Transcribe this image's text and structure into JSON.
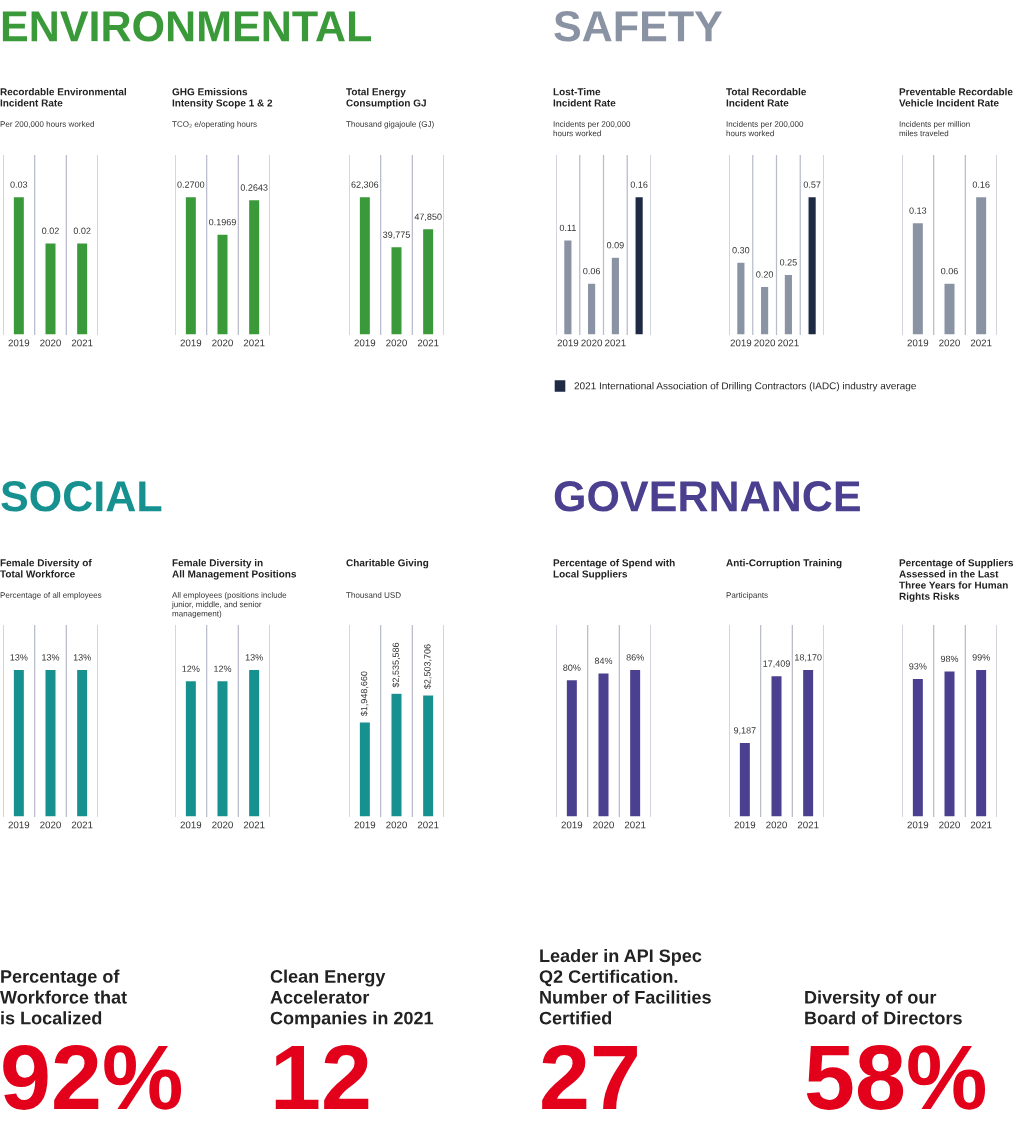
{
  "chart_data": [
    {
      "type": "other",
      "title": "ENVIRONMENTAL",
      "color": "#3a9a3a"
    },
    {
      "type": "bar",
      "title": "Recordable Environmental\nIncident Rate",
      "subtitle": "Per 200,000 hours worked",
      "categories": [
        "2019",
        "2020",
        "2021"
      ],
      "grid": "x",
      "series": [
        {
          "color": "#3a9a3a",
          "values": [
            0.03,
            0.02,
            0.02
          ],
          "value_labels": [
            "0.03",
            "0.02",
            "0.02"
          ]
        }
      ]
    },
    {
      "type": "bar",
      "title": "GHG Emissions\nIntensity Scope 1 & 2",
      "subtitle": "TCO₂ e/operating hours",
      "categories": [
        "2019",
        "2020",
        "2021"
      ],
      "grid": "x",
      "series": [
        {
          "color": "#3a9a3a",
          "values": [
            0.27,
            0.1969,
            0.2643
          ],
          "value_labels": [
            "0.2700",
            "0.1969",
            "0.2643"
          ]
        }
      ]
    },
    {
      "type": "bar",
      "title": "Total Energy\nConsumption GJ",
      "subtitle": "Thousand gigajoule (GJ)",
      "categories": [
        "2019",
        "2020",
        "2021"
      ],
      "grid": "x",
      "series": [
        {
          "color": "#3a9a3a",
          "values": [
            62306,
            39775,
            47850
          ],
          "value_labels": [
            "62,306",
            "39,775",
            "47,850"
          ]
        }
      ]
    },
    {
      "type": "other",
      "title": "SAFETY",
      "color": "#8a93a3"
    },
    {
      "type": "bar",
      "title": "Lost-Time\nIncident Rate",
      "subtitle": "Incidents per 200,000\nhours worked",
      "categories": [
        "2019",
        "2020",
        "2021",
        null
      ],
      "grid": "x",
      "legend": "bottom",
      "series": [
        {
          "color": "#8a93a3",
          "values": [
            0.11,
            0.06,
            0.09,
            null
          ],
          "value_labels": [
            "0.11",
            "0.06",
            "0.09",
            null
          ]
        },
        {
          "name": "2021 International Association of Drilling Contractors (IADC) industry average",
          "color": "#1e2a44",
          "values": [
            null,
            null,
            null,
            0.16
          ],
          "value_labels": [
            null,
            null,
            null,
            "0.16"
          ]
        }
      ]
    },
    {
      "type": "bar",
      "title": "Total Recordable\nIncident Rate",
      "subtitle": "Incidents per 200,000\nhours worked",
      "categories": [
        "2019",
        "2020",
        "2021",
        null
      ],
      "grid": "x",
      "series": [
        {
          "color": "#8a93a3",
          "values": [
            0.3,
            0.2,
            0.25,
            null
          ],
          "value_labels": [
            "0.30",
            "0.20",
            "0.25",
            null
          ]
        },
        {
          "color": "#1e2a44",
          "values": [
            null,
            null,
            null,
            0.57
          ],
          "value_labels": [
            null,
            null,
            null,
            "0.57"
          ]
        }
      ]
    },
    {
      "type": "bar",
      "title": "Preventable Recordable\nVehicle Incident Rate",
      "subtitle": "Incidents per million\nmiles traveled",
      "categories": [
        "2019",
        "2020",
        "2021"
      ],
      "grid": "x",
      "series": [
        {
          "color": "#8a93a3",
          "values": [
            0.13,
            0.06,
            0.16
          ],
          "value_labels": [
            "0.13",
            "0.06",
            "0.16"
          ]
        }
      ]
    },
    {
      "type": "other",
      "title": "SOCIAL",
      "color": "#17918f"
    },
    {
      "type": "bar",
      "title": "Female Diversity of\nTotal Workforce",
      "subtitle": "Percentage of all employees",
      "categories": [
        "2019",
        "2020",
        "2021"
      ],
      "grid": "x",
      "series": [
        {
          "color": "#17918f",
          "values": [
            13,
            13,
            13
          ],
          "value_labels": [
            "13%",
            "13%",
            "13%"
          ]
        }
      ]
    },
    {
      "type": "bar",
      "title": "Female Diversity in\nAll Management Positions",
      "subtitle": "All employees (positions include\njunior, middle, and senior\nmanagement)",
      "categories": [
        "2019",
        "2020",
        "2021"
      ],
      "grid": "x",
      "series": [
        {
          "color": "#17918f",
          "values": [
            12,
            12,
            13
          ],
          "value_labels": [
            "12%",
            "12%",
            "13%"
          ]
        }
      ]
    },
    {
      "type": "bar",
      "title": "Charitable Giving",
      "subtitle": "Thousand USD",
      "categories": [
        "2019",
        "2020",
        "2021"
      ],
      "grid": "x",
      "series": [
        {
          "color": "#17918f",
          "values": [
            1948660,
            2535586,
            2503706
          ],
          "value_labels": [
            "$1,948,660",
            "$2,535,586",
            "$2,503,706"
          ]
        }
      ]
    },
    {
      "type": "other",
      "title": "GOVERNANCE",
      "color": "#4b3f8f"
    },
    {
      "type": "bar",
      "title": "Percentage of Spend with\nLocal Suppliers",
      "categories": [
        "2019",
        "2020",
        "2021"
      ],
      "grid": "x",
      "series": [
        {
          "color": "#4b3f8f",
          "values": [
            80,
            84,
            86
          ],
          "value_labels": [
            "80%",
            "84%",
            "86%"
          ]
        }
      ]
    },
    {
      "type": "bar",
      "title": "Anti-Corruption Training",
      "subtitle": "Participants",
      "categories": [
        "2019",
        "2020",
        "2021"
      ],
      "grid": "x",
      "series": [
        {
          "color": "#4b3f8f",
          "values": [
            9187,
            17409,
            18170
          ],
          "value_labels": [
            "9,187",
            "17,409",
            "18,170"
          ]
        }
      ]
    },
    {
      "type": "bar",
      "title": "Percentage of Suppliers\nAssessed in the Last\nThree Years for Human\nRights Risks",
      "categories": [
        "2019",
        "2020",
        "2021"
      ],
      "grid": "x",
      "series": [
        {
          "color": "#4b3f8f",
          "values": [
            93,
            98,
            99
          ],
          "value_labels": [
            "93%",
            "98%",
            "99%"
          ]
        }
      ]
    },
    {
      "type": "other",
      "title": "Percentage of\nWorkforce that\nis Localized",
      "values": [
        92
      ],
      "value_labels": [
        "92%"
      ],
      "color": "#e2001a"
    },
    {
      "type": "other",
      "title": "Clean Energy\nAccelerator\nCompanies in 2021",
      "values": [
        12
      ],
      "value_labels": [
        "12"
      ],
      "color": "#e2001a"
    },
    {
      "type": "other",
      "title": "Leader in API Spec\nQ2 Certification.\nNumber of Facilities\nCertified",
      "values": [
        27
      ],
      "value_labels": [
        "27"
      ],
      "color": "#e2001a"
    },
    {
      "type": "other",
      "title": "Diversity of our\nBoard of Directors",
      "values": [
        58
      ],
      "value_labels": [
        "58%"
      ],
      "color": "#e2001a"
    }
  ]
}
